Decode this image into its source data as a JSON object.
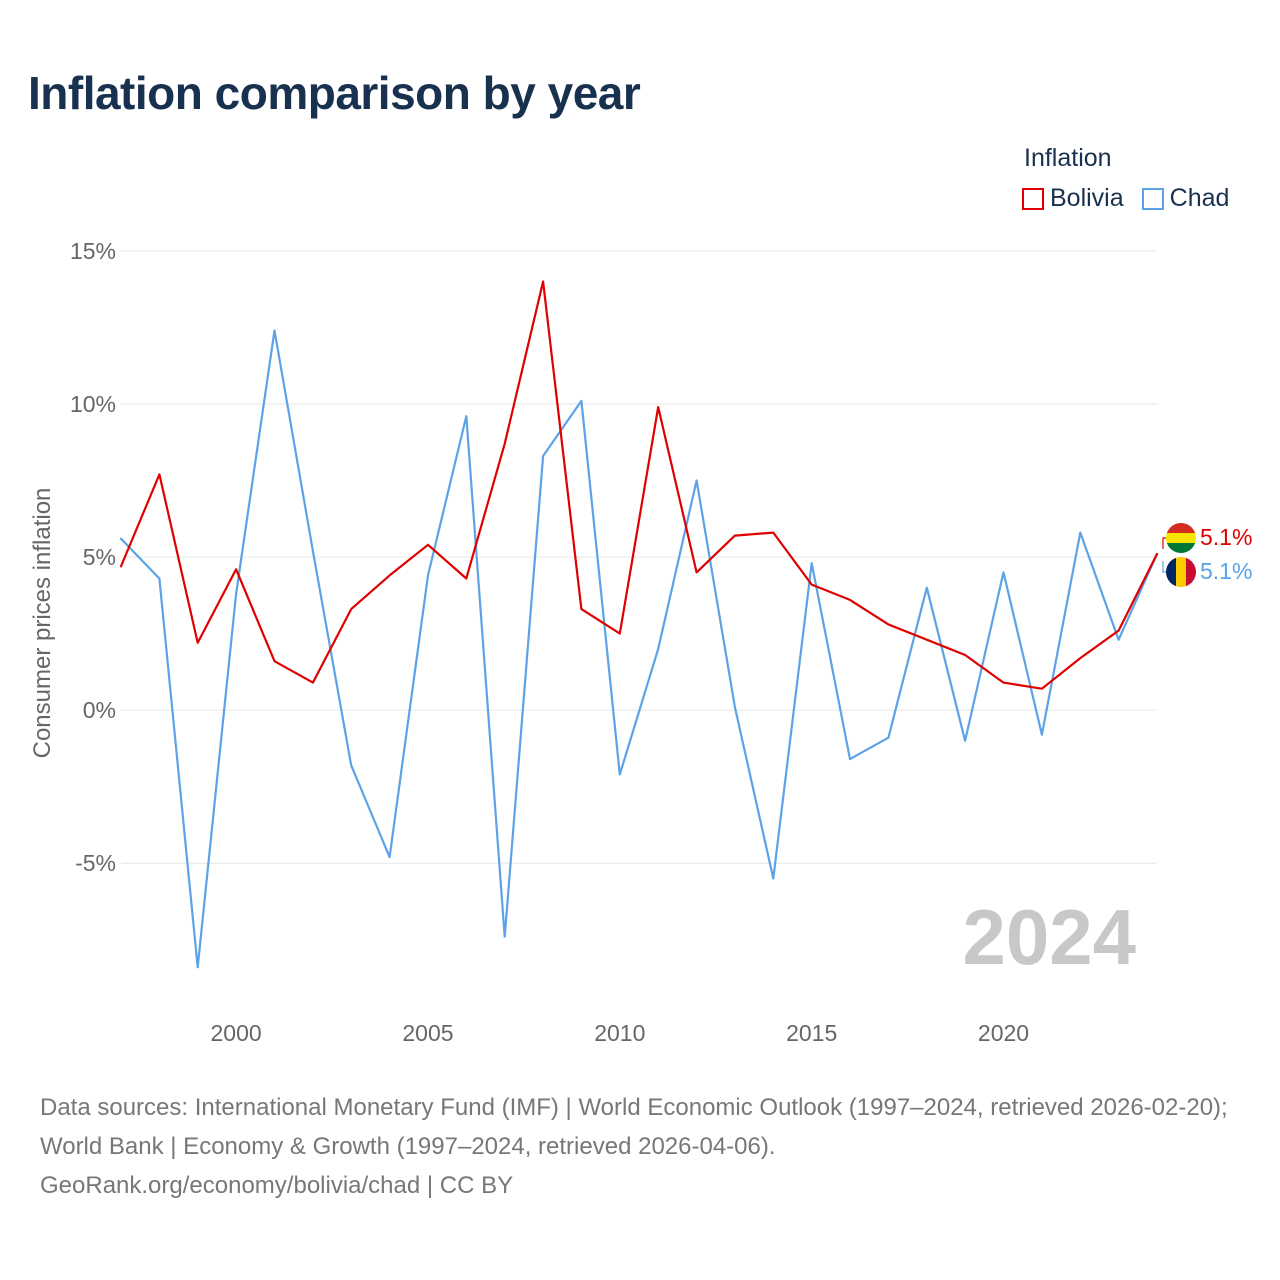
{
  "title": "Inflation comparison by year",
  "legend": {
    "title": "Inflation",
    "items": [
      {
        "label": "Bolivia",
        "color": "#e00000"
      },
      {
        "label": "Chad",
        "color": "#5ba3e6"
      }
    ]
  },
  "year_watermark": "2024",
  "footer": {
    "sources": "Data sources: International Monetary Fund (IMF) | World Economic Outlook (1997–2024, retrieved 2026-02-20); World Bank | Economy & Growth (1997–2024, retrieved 2026-04-06).",
    "credit": "GeoRank.org/economy/bolivia/chad | CC BY"
  },
  "chart_data": {
    "type": "line",
    "title": "Inflation comparison by year",
    "xlabel": "",
    "ylabel": "Consumer prices inflation",
    "x": [
      1997,
      1998,
      1999,
      2000,
      2001,
      2002,
      2003,
      2004,
      2005,
      2006,
      2007,
      2008,
      2009,
      2010,
      2011,
      2012,
      2013,
      2014,
      2015,
      2016,
      2017,
      2018,
      2019,
      2020,
      2021,
      2022,
      2023,
      2024
    ],
    "xlim": [
      1997,
      2024
    ],
    "ylim": [
      -9.5,
      16.5
    ],
    "x_ticks": [
      2000,
      2005,
      2010,
      2015,
      2020
    ],
    "x_tick_labels": [
      "2000",
      "2005",
      "2010",
      "2015",
      "2020"
    ],
    "y_ticks": [
      15,
      10,
      5,
      0,
      -5
    ],
    "y_tick_labels": [
      "15%",
      "10%",
      "5%",
      "0%",
      "-5%"
    ],
    "grid": true,
    "series": [
      {
        "name": "Bolivia",
        "color": "#e00000",
        "end_label": "5.1%",
        "values": [
          4.7,
          7.7,
          2.2,
          4.6,
          1.6,
          0.9,
          3.3,
          4.4,
          5.4,
          4.3,
          8.7,
          14.0,
          3.3,
          2.5,
          9.9,
          4.5,
          5.7,
          5.8,
          4.1,
          3.6,
          2.8,
          2.3,
          1.8,
          0.9,
          0.7,
          1.7,
          2.6,
          5.1
        ]
      },
      {
        "name": "Chad",
        "color": "#5ba3e6",
        "end_label": "5.1%",
        "values": [
          5.6,
          4.3,
          -8.4,
          3.8,
          12.4,
          5.2,
          -1.8,
          -4.8,
          4.4,
          9.6,
          -7.4,
          8.3,
          10.1,
          -2.1,
          2.0,
          7.5,
          0.1,
          -5.5,
          4.8,
          -1.6,
          -0.9,
          4.0,
          -1.0,
          4.5,
          -0.8,
          5.8,
          2.3,
          5.1
        ]
      }
    ]
  }
}
